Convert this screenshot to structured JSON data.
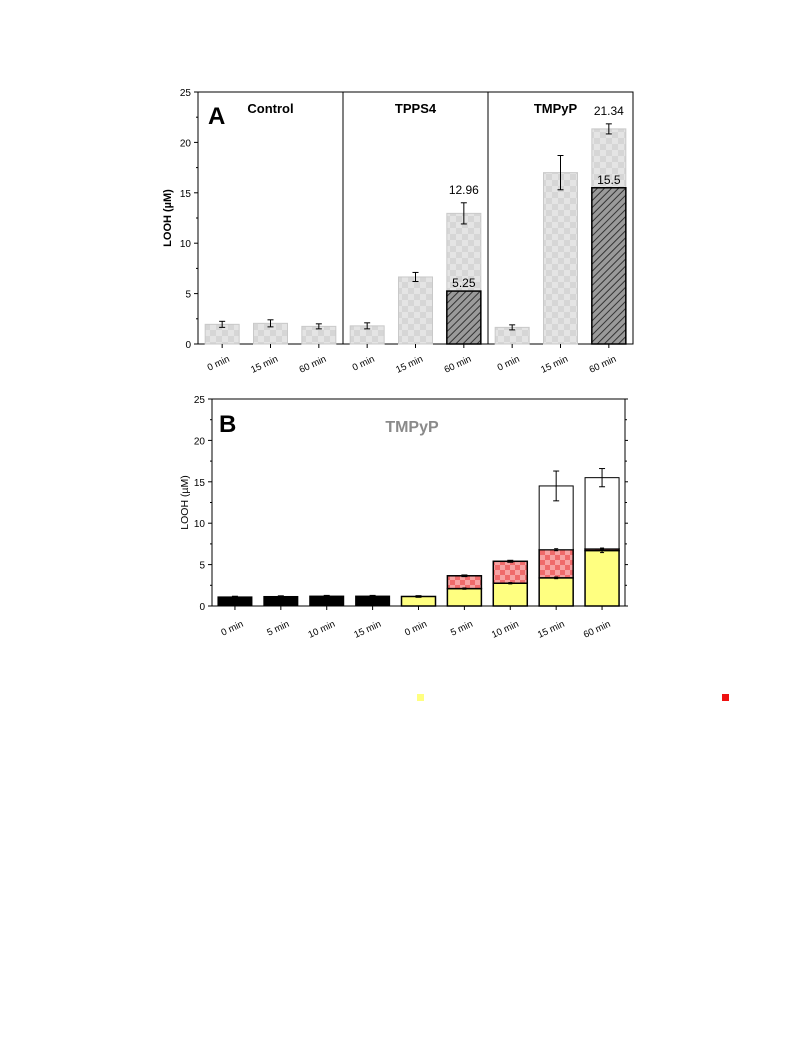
{
  "chart_data": [
    {
      "type": "bar",
      "panel_letter": "A",
      "ylabel": "LOOH (µM)",
      "ylim": [
        0,
        25
      ],
      "yticks": [
        "0",
        "5",
        "10",
        "15",
        "20",
        "25"
      ],
      "groups": [
        {
          "name": "Control",
          "categories": [
            "0 min",
            "15 min",
            "60 min"
          ],
          "total": [
            1.95,
            2.05,
            1.75
          ],
          "error": [
            0.3,
            0.35,
            0.25
          ],
          "hatched": [
            null,
            null,
            null
          ],
          "value_labels": [
            "",
            "",
            ""
          ],
          "hatched_labels": [
            "",
            "",
            ""
          ]
        },
        {
          "name": "TPPS4",
          "categories": [
            "0 min",
            "15 min",
            "60 min"
          ],
          "total": [
            1.8,
            6.65,
            12.96
          ],
          "error": [
            0.3,
            0.45,
            1.05
          ],
          "hatched": [
            null,
            null,
            5.25
          ],
          "value_labels": [
            "",
            "",
            "12.96"
          ],
          "hatched_labels": [
            "",
            "",
            "5.25"
          ]
        },
        {
          "name": "TMPyP",
          "categories": [
            "0 min",
            "15 min",
            "60 min"
          ],
          "total": [
            1.65,
            17.0,
            21.34
          ],
          "error": [
            0.25,
            1.7,
            0.5
          ],
          "hatched": [
            null,
            null,
            15.5
          ],
          "value_labels": [
            "",
            "",
            "21.34"
          ],
          "hatched_labels": [
            "",
            "",
            "15.5"
          ]
        }
      ],
      "colors": {
        "total_fill": "#e3e3e3",
        "total_stroke": "#c9c9c9",
        "hatched": "#6a6a6a"
      }
    },
    {
      "type": "bar",
      "stacked": true,
      "panel_letter": "B",
      "title": "TMPyP",
      "ylabel": "LOOH (µM)",
      "ylim": [
        0,
        25
      ],
      "yticks": [
        "0",
        "5",
        "10",
        "15",
        "20",
        "25"
      ],
      "categories": [
        "0 min",
        "5 min",
        "10 min",
        "15 min",
        "0 min",
        "5 min",
        "10 min",
        "15 min",
        "60 min"
      ],
      "bars": [
        {
          "black": 1.1,
          "error": 0.08
        },
        {
          "black": 1.15,
          "error": 0.08
        },
        {
          "black": 1.2,
          "error": 0.08
        },
        {
          "black": 1.2,
          "error": 0.08
        },
        {
          "yellow": 1.15,
          "error": 0.1
        },
        {
          "yellow": 2.1,
          "red": 1.55,
          "error": 0.1,
          "yellow_error": 0.08
        },
        {
          "yellow": 2.75,
          "red": 2.65,
          "error": 0.12,
          "yellow_error": 0.08
        },
        {
          "yellow": 3.4,
          "red": 3.4,
          "white": 7.7,
          "error": 1.8,
          "mid_error": 0.12,
          "yellow_error": 0.1
        },
        {
          "yellow": 6.7,
          "red": 0.2,
          "white": 8.6,
          "error": 1.1,
          "mid_error": 0.1,
          "yellow_error": 0.25
        }
      ],
      "colors": {
        "black": "#000000",
        "yellow": "#ffff80",
        "red": "#f46a6a",
        "white": "#ffffff",
        "title": "#8a8a8a"
      }
    }
  ],
  "legend_markers": [
    {
      "color": "#ffff80"
    },
    {
      "color": "#ee1111"
    }
  ]
}
